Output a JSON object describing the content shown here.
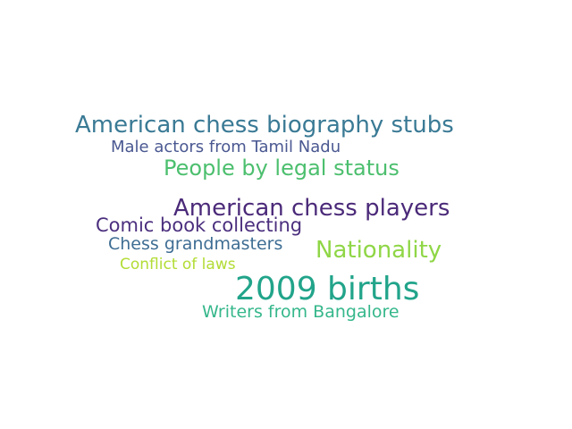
{
  "words": [
    {
      "text": "American chess biography stubs",
      "color": "#3a7a95"
    },
    {
      "text": "Male actors from Tamil Nadu",
      "color": "#4a5891"
    },
    {
      "text": "People by legal status",
      "color": "#4cbf6e"
    },
    {
      "text": "American chess players",
      "color": "#4b2a79"
    },
    {
      "text": "Comic book collecting",
      "color": "#4b2f7e"
    },
    {
      "text": "Chess grandmasters",
      "color": "#3e6d93"
    },
    {
      "text": "Nationality",
      "color": "#8fd646"
    },
    {
      "text": "Conflict of laws",
      "color": "#b2dc35"
    },
    {
      "text": "2009 births",
      "color": "#21a48a"
    },
    {
      "text": "Writers from Bangalore",
      "color": "#35b78b"
    }
  ]
}
